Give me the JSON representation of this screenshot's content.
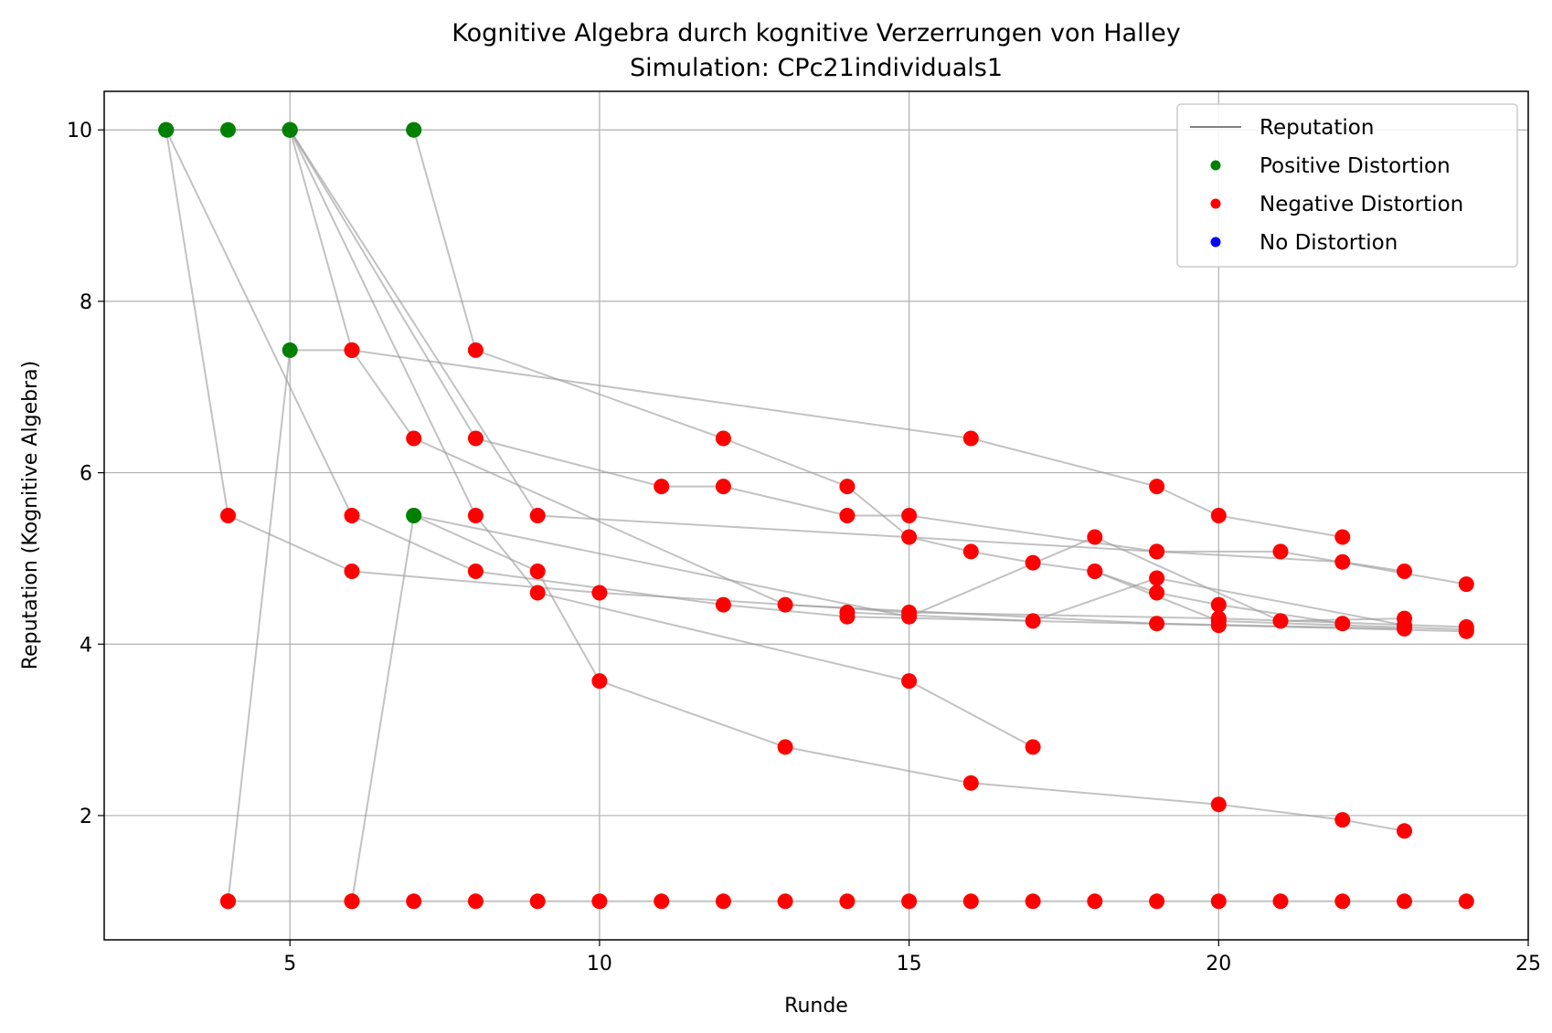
{
  "chart_data": {
    "type": "scatter",
    "title": "Kognitive Algebra durch kognitive Verzerrungen von Halley",
    "subtitle": "Simulation: CPc21individuals1",
    "xlabel": "Runde",
    "ylabel": "Reputation (Kognitive Algebra)",
    "xlim": [
      2,
      25
    ],
    "ylim": [
      0.55,
      10.45
    ],
    "xticks": [
      5,
      10,
      15,
      20,
      25
    ],
    "yticks": [
      2,
      4,
      6,
      8,
      10
    ],
    "grid": true,
    "legend_position": "top-right",
    "legend": [
      {
        "label": "Reputation",
        "kind": "line",
        "color": "#808080"
      },
      {
        "label": "Positive Distortion",
        "kind": "marker",
        "color": "#008000"
      },
      {
        "label": "Negative Distortion",
        "kind": "marker",
        "color": "#ff0000"
      },
      {
        "label": "No Distortion",
        "kind": "marker",
        "color": "#0000ff"
      }
    ],
    "line_color": "#999999",
    "series": [
      {
        "points": [
          [
            3,
            10
          ],
          [
            4,
            5.5
          ],
          [
            6,
            4.85
          ],
          [
            10,
            4.6
          ],
          [
            15,
            4.37
          ],
          [
            20,
            4.3
          ],
          [
            24,
            4.2
          ]
        ],
        "distortion": [
          "pos",
          "neg",
          "neg",
          "neg",
          "neg",
          "neg",
          "neg"
        ]
      },
      {
        "points": [
          [
            3,
            10
          ],
          [
            4,
            10
          ],
          [
            5,
            10
          ],
          [
            7,
            10
          ]
        ],
        "distortion": [
          "pos",
          "pos",
          "pos",
          "pos"
        ]
      },
      {
        "points": [
          [
            4,
            1
          ],
          [
            5,
            7.43
          ],
          [
            6,
            7.43
          ],
          [
            16,
            6.4
          ],
          [
            19,
            5.84
          ],
          [
            20,
            5.5
          ],
          [
            22,
            5.25
          ]
        ],
        "distortion": [
          "neg",
          "pos",
          "neg",
          "neg",
          "neg",
          "neg",
          "neg"
        ]
      },
      {
        "points": [
          [
            3,
            10
          ],
          [
            6,
            5.5
          ],
          [
            8,
            4.85
          ],
          [
            12,
            4.46
          ],
          [
            14,
            4.32
          ],
          [
            20,
            4.22
          ],
          [
            24,
            4.15
          ]
        ],
        "distortion": [
          "pos",
          "neg",
          "neg",
          "neg",
          "neg",
          "neg",
          "neg"
        ]
      },
      {
        "points": [
          [
            5,
            10
          ],
          [
            9,
            5.5
          ],
          [
            19,
            5.08
          ],
          [
            21,
            5.08
          ],
          [
            24,
            4.7
          ]
        ],
        "distortion": [
          "pos",
          "neg",
          "neg",
          "neg",
          "neg"
        ]
      },
      {
        "points": [
          [
            5,
            10
          ],
          [
            8,
            6.4
          ],
          [
            11,
            5.84
          ],
          [
            12,
            5.84
          ],
          [
            14,
            5.5
          ],
          [
            15,
            5.5
          ],
          [
            19,
            5.08
          ],
          [
            22,
            4.96
          ],
          [
            23,
            4.85
          ]
        ],
        "distortion": [
          "pos",
          "neg",
          "neg",
          "neg",
          "neg",
          "neg",
          "neg",
          "neg",
          "neg"
        ]
      },
      {
        "points": [
          [
            5,
            10
          ],
          [
            6,
            7.43
          ],
          [
            7,
            6.4
          ],
          [
            13,
            4.46
          ],
          [
            19,
            4.24
          ],
          [
            23,
            4.18
          ]
        ],
        "distortion": [
          "pos",
          "neg",
          "neg",
          "neg",
          "neg",
          "neg"
        ]
      },
      {
        "points": [
          [
            5,
            10
          ],
          [
            8,
            5.5
          ],
          [
            9,
            4.6
          ],
          [
            15,
            3.57
          ],
          [
            17,
            2.8
          ]
        ],
        "distortion": [
          "pos",
          "neg",
          "neg",
          "neg",
          "neg"
        ]
      },
      {
        "points": [
          [
            7,
            10
          ],
          [
            8,
            7.43
          ],
          [
            12,
            6.4
          ],
          [
            14,
            5.84
          ],
          [
            15,
            5.25
          ],
          [
            16,
            5.08
          ],
          [
            17,
            4.95
          ],
          [
            18,
            4.85
          ],
          [
            19,
            4.6
          ],
          [
            20,
            4.46
          ],
          [
            22,
            4.24
          ]
        ],
        "distortion": [
          "pos",
          "neg",
          "neg",
          "neg",
          "neg",
          "neg",
          "neg",
          "neg",
          "neg",
          "neg",
          "neg"
        ]
      },
      {
        "points": [
          [
            6,
            1
          ],
          [
            7,
            5.5
          ],
          [
            9,
            4.85
          ],
          [
            10,
            3.57
          ],
          [
            13,
            2.8
          ],
          [
            16,
            2.38
          ],
          [
            20,
            2.13
          ],
          [
            22,
            1.95
          ],
          [
            23,
            1.82
          ]
        ],
        "distortion": [
          "neg",
          "pos",
          "neg",
          "neg",
          "neg",
          "neg",
          "neg",
          "neg",
          "neg"
        ]
      },
      {
        "points": [
          [
            7,
            5.5
          ],
          [
            15,
            4.32
          ],
          [
            18,
            5.25
          ],
          [
            21,
            4.27
          ],
          [
            23,
            4.3
          ]
        ],
        "distortion": [
          "pos",
          "neg",
          "neg",
          "neg",
          "neg"
        ]
      },
      {
        "points": [
          [
            14,
            4.37
          ],
          [
            17,
            4.27
          ],
          [
            19,
            4.77
          ],
          [
            23,
            4.22
          ]
        ],
        "distortion": [
          "neg",
          "neg",
          "neg",
          "neg"
        ]
      },
      {
        "points": [
          [
            18,
            4.85
          ],
          [
            20,
            4.27
          ],
          [
            24,
            4.17
          ]
        ],
        "distortion": [
          "neg",
          "neg",
          "neg"
        ]
      },
      {
        "points": [
          [
            4,
            1
          ],
          [
            6,
            1
          ],
          [
            7,
            1
          ],
          [
            8,
            1
          ],
          [
            9,
            1
          ],
          [
            10,
            1
          ],
          [
            11,
            1
          ],
          [
            12,
            1
          ],
          [
            13,
            1
          ],
          [
            14,
            1
          ],
          [
            15,
            1
          ],
          [
            16,
            1
          ],
          [
            17,
            1
          ],
          [
            18,
            1
          ],
          [
            19,
            1
          ],
          [
            20,
            1
          ],
          [
            21,
            1
          ],
          [
            22,
            1
          ],
          [
            23,
            1
          ],
          [
            24,
            1
          ]
        ],
        "distortion": [
          "neg",
          "neg",
          "neg",
          "neg",
          "neg",
          "neg",
          "neg",
          "neg",
          "neg",
          "neg",
          "neg",
          "neg",
          "neg",
          "neg",
          "neg",
          "neg",
          "neg",
          "neg",
          "neg",
          "neg"
        ]
      }
    ]
  }
}
